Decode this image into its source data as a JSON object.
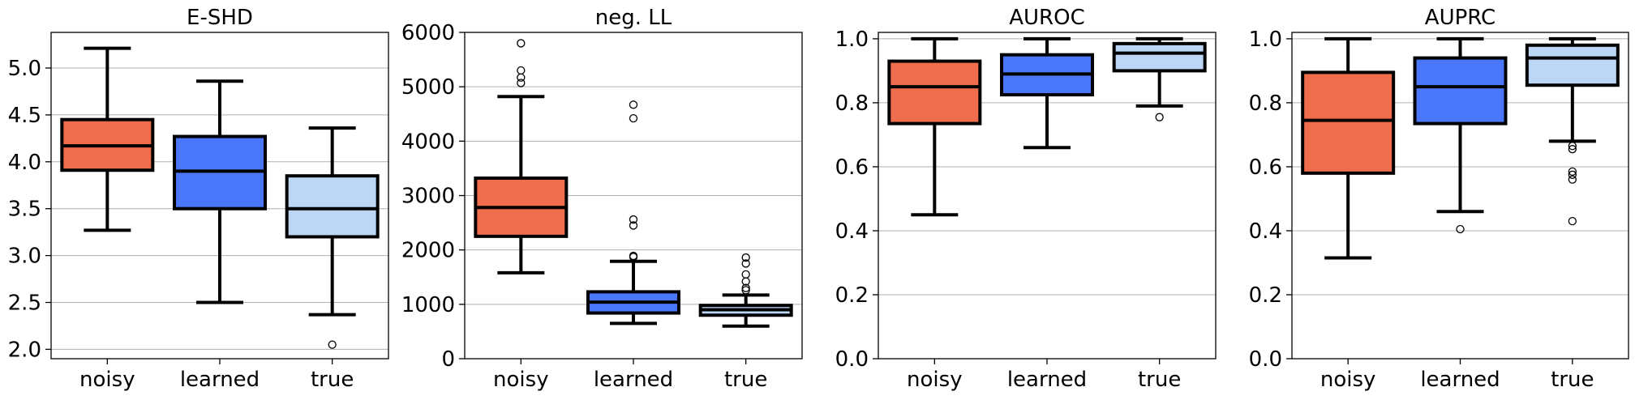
{
  "chart_data": [
    {
      "type": "box",
      "title": "E-SHD",
      "xlabel": "",
      "ylabel": "",
      "categories": [
        "noisy",
        "learned",
        "true"
      ],
      "colors": [
        "#ef6c4d",
        "#4a76fa",
        "#bcd6f6"
      ],
      "ylim": [
        1.9,
        5.38
      ],
      "yticks": [
        2.0,
        2.5,
        3.0,
        3.5,
        4.0,
        4.5,
        5.0
      ],
      "ytick_labels": [
        "2.0",
        "2.5",
        "3.0",
        "3.5",
        "4.0",
        "4.5",
        "5.0"
      ],
      "grid": "horizontal",
      "boxes": [
        {
          "category": "noisy",
          "whislo": 3.27,
          "q1": 3.91,
          "med": 4.17,
          "q3": 4.45,
          "whishi": 5.21,
          "fliers": []
        },
        {
          "category": "learned",
          "whislo": 2.5,
          "q1": 3.5,
          "med": 3.9,
          "q3": 4.27,
          "whishi": 4.86,
          "fliers": []
        },
        {
          "category": "true",
          "whislo": 2.37,
          "q1": 3.2,
          "med": 3.5,
          "q3": 3.85,
          "whishi": 4.36,
          "fliers": [
            2.05
          ]
        }
      ]
    },
    {
      "type": "box",
      "title": "neg. LL",
      "xlabel": "",
      "ylabel": "",
      "categories": [
        "noisy",
        "learned",
        "true"
      ],
      "colors": [
        "#ef6c4d",
        "#4a76fa",
        "#bcd6f6"
      ],
      "ylim": [
        0,
        6000
      ],
      "yticks": [
        0,
        1000,
        2000,
        3000,
        4000,
        5000,
        6000
      ],
      "ytick_labels": [
        "0",
        "1000",
        "2000",
        "3000",
        "4000",
        "5000",
        "6000"
      ],
      "grid": "horizontal",
      "boxes": [
        {
          "category": "noisy",
          "whislo": 1580,
          "q1": 2250,
          "med": 2780,
          "q3": 3320,
          "whishi": 4820,
          "fliers": [
            5070,
            5170,
            5300,
            5800
          ]
        },
        {
          "category": "learned",
          "whislo": 650,
          "q1": 840,
          "med": 1040,
          "q3": 1230,
          "whishi": 1790,
          "fliers": [
            1870,
            1890,
            2450,
            2560,
            4420,
            4670
          ]
        },
        {
          "category": "true",
          "whislo": 600,
          "q1": 800,
          "med": 900,
          "q3": 980,
          "whishi": 1170,
          "fliers": [
            1260,
            1300,
            1420,
            1550,
            1750,
            1860
          ]
        }
      ]
    },
    {
      "type": "box",
      "title": "AUROC",
      "xlabel": "",
      "ylabel": "",
      "categories": [
        "noisy",
        "learned",
        "true"
      ],
      "colors": [
        "#ef6c4d",
        "#4a76fa",
        "#bcd6f6"
      ],
      "ylim": [
        0,
        1.02
      ],
      "yticks": [
        0.0,
        0.2,
        0.4,
        0.6,
        0.8,
        1.0
      ],
      "ytick_labels": [
        "0.0",
        "0.2",
        "0.4",
        "0.6",
        "0.8",
        "1.0"
      ],
      "grid": "horizontal",
      "boxes": [
        {
          "category": "noisy",
          "whislo": 0.45,
          "q1": 0.735,
          "med": 0.85,
          "q3": 0.93,
          "whishi": 1.0,
          "fliers": []
        },
        {
          "category": "learned",
          "whislo": 0.66,
          "q1": 0.825,
          "med": 0.89,
          "q3": 0.95,
          "whishi": 1.0,
          "fliers": []
        },
        {
          "category": "true",
          "whislo": 0.79,
          "q1": 0.9,
          "med": 0.955,
          "q3": 0.985,
          "whishi": 1.0,
          "fliers": [
            0.755
          ]
        }
      ]
    },
    {
      "type": "box",
      "title": "AUPRC",
      "xlabel": "",
      "ylabel": "",
      "categories": [
        "noisy",
        "learned",
        "true"
      ],
      "colors": [
        "#ef6c4d",
        "#4a76fa",
        "#bcd6f6"
      ],
      "ylim": [
        0,
        1.02
      ],
      "yticks": [
        0.0,
        0.2,
        0.4,
        0.6,
        0.8,
        1.0
      ],
      "ytick_labels": [
        "0.0",
        "0.2",
        "0.4",
        "0.6",
        "0.8",
        "1.0"
      ],
      "grid": "horizontal",
      "boxes": [
        {
          "category": "noisy",
          "whislo": 0.315,
          "q1": 0.58,
          "med": 0.745,
          "q3": 0.895,
          "whishi": 1.0,
          "fliers": []
        },
        {
          "category": "learned",
          "whislo": 0.46,
          "q1": 0.735,
          "med": 0.85,
          "q3": 0.94,
          "whishi": 1.0,
          "fliers": [
            0.405
          ]
        },
        {
          "category": "true",
          "whislo": 0.68,
          "q1": 0.855,
          "med": 0.94,
          "q3": 0.98,
          "whishi": 1.0,
          "fliers": [
            0.43,
            0.56,
            0.575,
            0.585,
            0.655,
            0.665
          ]
        }
      ]
    }
  ]
}
